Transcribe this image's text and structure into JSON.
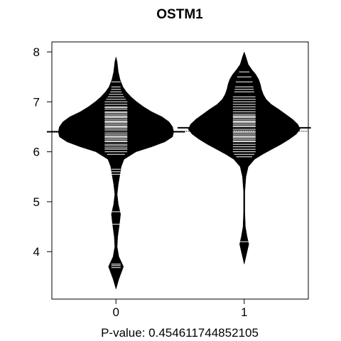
{
  "chart_data": {
    "type": "beanplot",
    "title": "OSTM1",
    "xlabel": "P-value: 0.454611744852105",
    "ylabel": "",
    "categories": [
      "0",
      "1"
    ],
    "ylim": [
      3.05,
      8.2
    ],
    "yticks": [
      4,
      5,
      6,
      7,
      8
    ],
    "ytick_labels": [
      "4",
      "5",
      "6",
      "7",
      "8"
    ],
    "overall_mean": 6.41,
    "colors": {
      "bean": "#000000",
      "lines": "#ffffff",
      "background": "#ffffff"
    },
    "beans": [
      {
        "category": "0",
        "mean": 6.4,
        "density": [
          [
            3.25,
            0
          ],
          [
            3.45,
            0.05
          ],
          [
            3.7,
            0.13
          ],
          [
            3.9,
            0.05
          ],
          [
            4.1,
            0.02
          ],
          [
            4.3,
            0.03
          ],
          [
            4.55,
            0.06
          ],
          [
            4.75,
            0.08
          ],
          [
            4.95,
            0.04
          ],
          [
            5.15,
            0.02
          ],
          [
            5.35,
            0.04
          ],
          [
            5.55,
            0.07
          ],
          [
            5.7,
            0.09
          ],
          [
            5.85,
            0.14
          ],
          [
            6.0,
            0.35
          ],
          [
            6.1,
            0.62
          ],
          [
            6.2,
            0.85
          ],
          [
            6.3,
            0.98
          ],
          [
            6.4,
            1.0
          ],
          [
            6.5,
            0.98
          ],
          [
            6.6,
            0.92
          ],
          [
            6.7,
            0.8
          ],
          [
            6.8,
            0.62
          ],
          [
            6.9,
            0.48
          ],
          [
            7.0,
            0.36
          ],
          [
            7.1,
            0.26
          ],
          [
            7.2,
            0.18
          ],
          [
            7.3,
            0.12
          ],
          [
            7.45,
            0.07
          ],
          [
            7.6,
            0.04
          ],
          [
            7.8,
            0.02
          ],
          [
            7.9,
            0
          ]
        ],
        "observations": [
          3.68,
          3.72,
          3.75,
          4.55,
          4.8,
          5.55,
          5.6,
          5.65,
          5.95,
          6.0,
          6.05,
          6.08,
          6.12,
          6.15,
          6.2,
          6.22,
          6.25,
          6.28,
          6.3,
          6.32,
          6.35,
          6.38,
          6.4,
          6.42,
          6.45,
          6.48,
          6.5,
          6.52,
          6.55,
          6.58,
          6.6,
          6.62,
          6.65,
          6.68,
          6.7,
          6.72,
          6.75,
          6.78,
          6.8,
          6.85,
          6.88,
          6.9,
          6.95,
          7.0,
          7.05,
          7.1,
          7.15,
          7.2,
          7.25,
          7.3,
          7.4
        ]
      },
      {
        "category": "1",
        "mean": 6.48,
        "density": [
          [
            3.75,
            0
          ],
          [
            3.95,
            0.04
          ],
          [
            4.15,
            0.08
          ],
          [
            4.3,
            0.05
          ],
          [
            4.5,
            0.02
          ],
          [
            4.8,
            0.01
          ],
          [
            5.2,
            0.01
          ],
          [
            5.5,
            0.03
          ],
          [
            5.7,
            0.07
          ],
          [
            5.85,
            0.18
          ],
          [
            5.95,
            0.32
          ],
          [
            6.05,
            0.48
          ],
          [
            6.15,
            0.64
          ],
          [
            6.25,
            0.78
          ],
          [
            6.35,
            0.9
          ],
          [
            6.45,
            0.97
          ],
          [
            6.55,
            0.93
          ],
          [
            6.65,
            0.84
          ],
          [
            6.75,
            0.72
          ],
          [
            6.85,
            0.6
          ],
          [
            6.95,
            0.47
          ],
          [
            7.05,
            0.38
          ],
          [
            7.15,
            0.33
          ],
          [
            7.25,
            0.3
          ],
          [
            7.35,
            0.28
          ],
          [
            7.45,
            0.25
          ],
          [
            7.55,
            0.2
          ],
          [
            7.65,
            0.13
          ],
          [
            7.75,
            0.07
          ],
          [
            7.9,
            0.03
          ],
          [
            8.0,
            0
          ]
        ],
        "observations": [
          4.2,
          5.9,
          5.95,
          6.0,
          6.05,
          6.1,
          6.15,
          6.2,
          6.22,
          6.25,
          6.28,
          6.3,
          6.32,
          6.35,
          6.38,
          6.4,
          6.42,
          6.45,
          6.48,
          6.5,
          6.52,
          6.55,
          6.58,
          6.6,
          6.62,
          6.65,
          6.68,
          6.7,
          6.72,
          6.75,
          6.8,
          6.85,
          6.9,
          6.95,
          7.0,
          7.05,
          7.1,
          7.2,
          7.25,
          7.3,
          7.4,
          7.5,
          7.6
        ]
      }
    ]
  }
}
